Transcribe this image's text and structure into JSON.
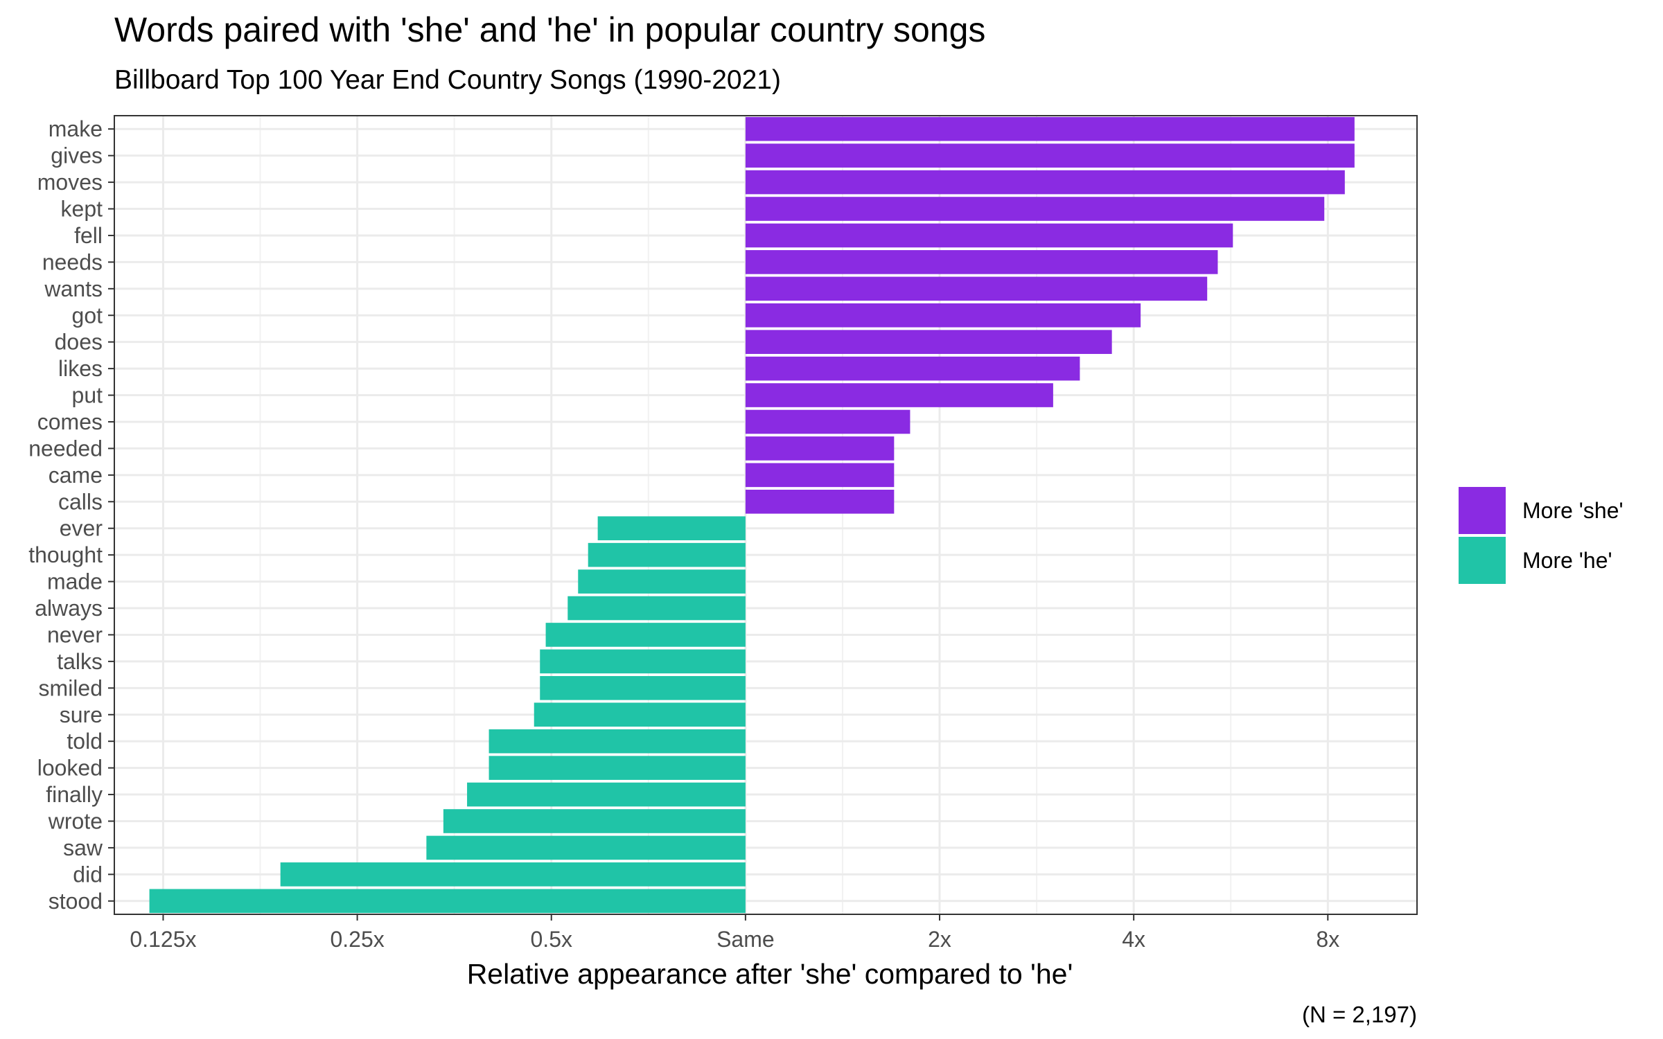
{
  "chart_data": {
    "type": "bar",
    "orientation": "horizontal",
    "title": "Words paired with 'she' and 'he' in popular country songs",
    "subtitle": "Billboard Top 100 Year End Country Songs (1990-2021)",
    "xlabel": "Relative appearance after 'she' compared to 'he'",
    "ylabel": "",
    "caption": "(N = 2,197)",
    "x_scale": "log2",
    "xlim": [
      0.105,
      11.0
    ],
    "x_ticks": [
      {
        "value": 0.125,
        "label": "0.125x"
      },
      {
        "value": 0.25,
        "label": "0.25x"
      },
      {
        "value": 0.5,
        "label": "0.5x"
      },
      {
        "value": 1,
        "label": "Same"
      },
      {
        "value": 2,
        "label": "2x"
      },
      {
        "value": 4,
        "label": "4x"
      },
      {
        "value": 8,
        "label": "8x"
      }
    ],
    "grid": true,
    "legend_position": "right",
    "colors": {
      "she": "#8a2be2",
      "he": "#20c4a7"
    },
    "legend": [
      {
        "key": "she",
        "label": "More 'she'"
      },
      {
        "key": "he",
        "label": "More 'he'"
      }
    ],
    "categories": [
      "make",
      "gives",
      "moves",
      "kept",
      "fell",
      "needs",
      "wants",
      "got",
      "does",
      "likes",
      "put",
      "comes",
      "needed",
      "came",
      "calls",
      "ever",
      "thought",
      "made",
      "always",
      "never",
      "talks",
      "smiled",
      "sure",
      "told",
      "looked",
      "finally",
      "wrote",
      "saw",
      "did",
      "stood"
    ],
    "values": [
      8.8,
      8.8,
      8.5,
      7.9,
      5.7,
      5.4,
      5.2,
      4.1,
      3.7,
      3.3,
      3.0,
      1.8,
      1.7,
      1.7,
      1.7,
      0.59,
      0.57,
      0.55,
      0.53,
      0.49,
      0.48,
      0.48,
      0.47,
      0.4,
      0.4,
      0.37,
      0.34,
      0.32,
      0.19,
      0.119
    ],
    "groups": [
      "she",
      "she",
      "she",
      "she",
      "she",
      "she",
      "she",
      "she",
      "she",
      "she",
      "she",
      "she",
      "she",
      "she",
      "she",
      "he",
      "he",
      "he",
      "he",
      "he",
      "he",
      "he",
      "he",
      "he",
      "he",
      "he",
      "he",
      "he",
      "he",
      "he"
    ]
  }
}
